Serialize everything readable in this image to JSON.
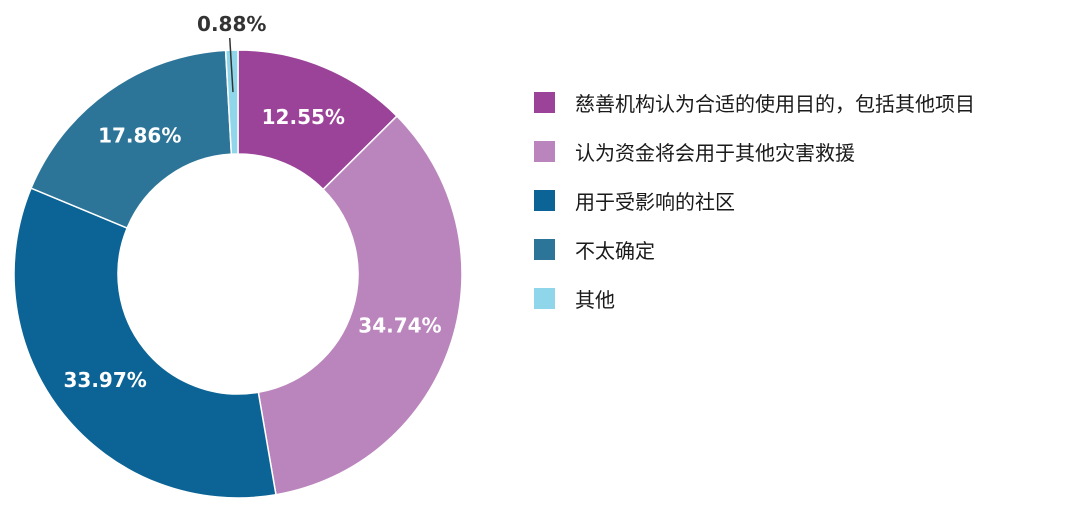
{
  "chart_data": {
    "type": "pie",
    "donut": true,
    "title": "",
    "categories": [
      "慈善机构认为合适的使用目的，包括其他项目",
      "认为资金将会用于其他灾害救援",
      "用于受影响的社区",
      "不太确定",
      "其他"
    ],
    "values": [
      12.55,
      34.74,
      33.97,
      17.86,
      0.88
    ],
    "labels": [
      "12.55%",
      "34.74%",
      "33.97%",
      "17.86%",
      "0.88%"
    ],
    "colors": [
      "#9b4399",
      "#ba84bc",
      "#0b6495",
      "#2c7599",
      "#8fd6ea"
    ],
    "legend_position": "right"
  }
}
